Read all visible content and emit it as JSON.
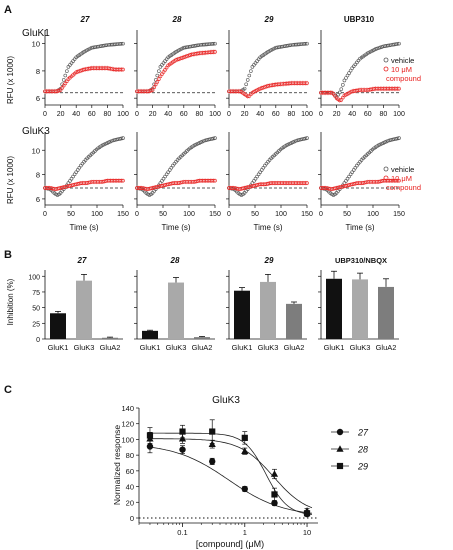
{
  "panels": {
    "a": "A",
    "b": "B",
    "c": "C"
  },
  "colors": {
    "vehicle": "#555555",
    "compound": "#e8201f",
    "baseline": "#222222",
    "bar_dark": "#111111",
    "bar_mid": "#a9a9a9",
    "bar_grey": "#7d7d7d"
  },
  "panel_a": {
    "compounds": [
      "27",
      "28",
      "29",
      "UBP310"
    ],
    "rows": [
      "GluK1",
      "GluK3"
    ],
    "ylabel": "RFU (x 1000)",
    "xlabel": "Time (s)",
    "legend": {
      "vehicle": "vehicle",
      "compound_line1": "10 μM",
      "compound_line2": "compound"
    },
    "row1_yticks": [
      "6",
      "8",
      "10"
    ],
    "row1_xticks": [
      "0",
      "20",
      "40",
      "60",
      "80",
      "100"
    ],
    "row2_yticks": [
      "6",
      "8",
      "10"
    ],
    "row2_xticks": [
      "0",
      "50",
      "100",
      "150"
    ]
  },
  "panel_b": {
    "titles": [
      "27",
      "28",
      "29",
      "UBP310/NBQX"
    ],
    "ylabel": "Inhibition (%)",
    "yticks": [
      "0",
      "25",
      "50",
      "75",
      "100"
    ],
    "categories": [
      "GluK1",
      "GluK3",
      "GluA2"
    ]
  },
  "panel_c": {
    "title": "GluK3",
    "ylabel": "Normalized response",
    "xlabel": "[compound] (μM)",
    "yticks": [
      "0",
      "20",
      "40",
      "60",
      "80",
      "100",
      "120",
      "140"
    ],
    "xticks": [
      "0.1",
      "1",
      "10"
    ],
    "legend": [
      "27",
      "28",
      "29"
    ]
  },
  "chart_data": [
    {
      "type": "line",
      "title": "27",
      "ylabel": "RFU (x 1000)",
      "xlim": [
        0,
        100
      ],
      "ylim": [
        5.5,
        11
      ],
      "series": [
        {
          "name": "vehicle",
          "x": [
            0,
            15,
            20,
            30,
            40,
            50,
            60,
            70,
            80,
            90,
            100
          ],
          "values": [
            6.5,
            6.5,
            6.7,
            8.3,
            9.0,
            9.4,
            9.7,
            9.8,
            9.9,
            9.95,
            10.0
          ]
        },
        {
          "name": "10 μM compound",
          "x": [
            0,
            15,
            20,
            30,
            40,
            50,
            60,
            70,
            80,
            90,
            100
          ],
          "values": [
            6.5,
            6.5,
            6.6,
            7.4,
            7.9,
            8.1,
            8.2,
            8.2,
            8.2,
            8.1,
            8.1
          ]
        }
      ]
    },
    {
      "type": "line",
      "title": "28",
      "ylabel": "RFU (x 1000)",
      "xlim": [
        0,
        100
      ],
      "ylim": [
        5.5,
        11
      ],
      "series": [
        {
          "name": "vehicle",
          "x": [
            0,
            15,
            20,
            30,
            40,
            50,
            60,
            70,
            80,
            90,
            100
          ],
          "values": [
            6.5,
            6.5,
            6.7,
            8.3,
            9.0,
            9.4,
            9.7,
            9.8,
            9.9,
            9.95,
            10.0
          ]
        },
        {
          "name": "10 μM compound",
          "x": [
            0,
            15,
            20,
            30,
            40,
            50,
            60,
            70,
            80,
            90,
            100
          ],
          "values": [
            6.5,
            6.5,
            6.6,
            7.6,
            8.4,
            8.8,
            9.0,
            9.2,
            9.3,
            9.35,
            9.4
          ]
        }
      ]
    },
    {
      "type": "line",
      "title": "29",
      "ylabel": "RFU (x 1000)",
      "xlim": [
        0,
        100
      ],
      "ylim": [
        5.5,
        11
      ],
      "series": [
        {
          "name": "vehicle",
          "x": [
            0,
            15,
            20,
            30,
            40,
            50,
            60,
            70,
            80,
            90,
            100
          ],
          "values": [
            6.5,
            6.5,
            6.7,
            8.3,
            9.0,
            9.4,
            9.7,
            9.8,
            9.9,
            9.95,
            10.0
          ]
        },
        {
          "name": "10 μM compound",
          "x": [
            0,
            15,
            20,
            25,
            30,
            40,
            50,
            60,
            70,
            80,
            90,
            100
          ],
          "values": [
            6.5,
            6.5,
            6.3,
            6.1,
            6.4,
            6.7,
            6.9,
            7.0,
            7.05,
            7.1,
            7.1,
            7.1
          ]
        }
      ]
    },
    {
      "type": "line",
      "title": "UBP310",
      "ylabel": "RFU (x 1000)",
      "xlim": [
        0,
        100
      ],
      "ylim": [
        5.5,
        11
      ],
      "series": [
        {
          "name": "vehicle",
          "x": [
            0,
            15,
            20,
            25,
            30,
            40,
            50,
            60,
            70,
            80,
            90,
            100
          ],
          "values": [
            6.4,
            6.4,
            6.1,
            6.5,
            7.3,
            8.2,
            8.9,
            9.3,
            9.6,
            9.8,
            9.9,
            10.0
          ]
        },
        {
          "name": "10 μM compound",
          "x": [
            0,
            15,
            20,
            25,
            30,
            40,
            50,
            60,
            70,
            80,
            90,
            100
          ],
          "values": [
            6.4,
            6.4,
            6.0,
            5.8,
            6.2,
            6.5,
            6.6,
            6.6,
            6.7,
            6.7,
            6.7,
            6.7
          ]
        }
      ]
    },
    {
      "type": "line",
      "title": "27",
      "ylabel": "RFU (x 1000)",
      "xlabel": "Time (s)",
      "xlim": [
        0,
        150
      ],
      "ylim": [
        5.5,
        11.5
      ],
      "series": [
        {
          "name": "vehicle",
          "x": [
            0,
            10,
            20,
            25,
            30,
            40,
            50,
            60,
            70,
            80,
            90,
            100,
            110,
            120,
            130,
            140,
            150
          ],
          "values": [
            6.9,
            6.8,
            6.4,
            6.3,
            6.5,
            7.0,
            7.6,
            8.2,
            8.8,
            9.3,
            9.7,
            10.1,
            10.4,
            10.6,
            10.8,
            10.9,
            11.0
          ]
        },
        {
          "name": "10 μM compound",
          "x": [
            0,
            10,
            20,
            30,
            40,
            50,
            60,
            70,
            80,
            90,
            100,
            110,
            120,
            130,
            140,
            150
          ],
          "values": [
            6.9,
            6.9,
            6.8,
            6.9,
            7.0,
            7.1,
            7.2,
            7.3,
            7.3,
            7.4,
            7.4,
            7.4,
            7.5,
            7.5,
            7.5,
            7.5
          ]
        }
      ]
    },
    {
      "type": "line",
      "title": "28",
      "ylabel": "RFU (x 1000)",
      "xlabel": "Time (s)",
      "xlim": [
        0,
        150
      ],
      "ylim": [
        5.5,
        11.5
      ],
      "series": [
        {
          "name": "vehicle",
          "x": [
            0,
            10,
            20,
            25,
            30,
            40,
            50,
            60,
            70,
            80,
            90,
            100,
            110,
            120,
            130,
            140,
            150
          ],
          "values": [
            6.9,
            6.8,
            6.4,
            6.3,
            6.5,
            7.0,
            7.6,
            8.2,
            8.8,
            9.3,
            9.7,
            10.1,
            10.4,
            10.6,
            10.8,
            10.9,
            11.0
          ]
        },
        {
          "name": "10 μM compound",
          "x": [
            0,
            10,
            20,
            30,
            40,
            50,
            60,
            70,
            80,
            90,
            100,
            110,
            120,
            130,
            140,
            150
          ],
          "values": [
            6.9,
            6.9,
            6.8,
            6.9,
            7.0,
            7.1,
            7.2,
            7.3,
            7.3,
            7.4,
            7.4,
            7.4,
            7.5,
            7.5,
            7.5,
            7.5
          ]
        }
      ]
    },
    {
      "type": "line",
      "title": "29",
      "ylabel": "RFU (x 1000)",
      "xlabel": "Time (s)",
      "xlim": [
        0,
        150
      ],
      "ylim": [
        5.5,
        11.5
      ],
      "series": [
        {
          "name": "vehicle",
          "x": [
            0,
            10,
            20,
            25,
            30,
            40,
            50,
            60,
            70,
            80,
            90,
            100,
            110,
            120,
            130,
            140,
            150
          ],
          "values": [
            6.9,
            6.8,
            6.4,
            6.3,
            6.5,
            7.0,
            7.6,
            8.2,
            8.8,
            9.3,
            9.7,
            10.1,
            10.4,
            10.6,
            10.8,
            10.9,
            11.0
          ]
        },
        {
          "name": "10 μM compound",
          "x": [
            0,
            10,
            20,
            30,
            40,
            50,
            60,
            70,
            80,
            90,
            100,
            110,
            120,
            130,
            140,
            150
          ],
          "values": [
            6.9,
            6.9,
            6.8,
            6.9,
            7.0,
            7.1,
            7.2,
            7.2,
            7.3,
            7.3,
            7.3,
            7.3,
            7.3,
            7.3,
            7.3,
            7.3
          ]
        }
      ]
    },
    {
      "type": "line",
      "title": "UBP310",
      "ylabel": "RFU (x 1000)",
      "xlabel": "Time (s)",
      "xlim": [
        0,
        150
      ],
      "ylim": [
        5.5,
        11.5
      ],
      "series": [
        {
          "name": "vehicle",
          "x": [
            0,
            10,
            20,
            25,
            30,
            40,
            50,
            60,
            70,
            80,
            90,
            100,
            110,
            120,
            130,
            140,
            150
          ],
          "values": [
            6.9,
            6.8,
            6.4,
            6.3,
            6.5,
            7.0,
            7.6,
            8.2,
            8.8,
            9.3,
            9.7,
            10.1,
            10.4,
            10.6,
            10.8,
            10.9,
            11.0
          ]
        },
        {
          "name": "10 μM compound",
          "x": [
            0,
            10,
            20,
            30,
            40,
            50,
            60,
            70,
            80,
            90,
            100,
            110,
            120,
            130,
            140,
            150
          ],
          "values": [
            6.9,
            6.9,
            6.8,
            6.9,
            7.0,
            7.1,
            7.2,
            7.3,
            7.3,
            7.4,
            7.4,
            7.4,
            7.5,
            7.5,
            7.5,
            7.5
          ]
        }
      ]
    },
    {
      "type": "bar",
      "title": "27",
      "ylabel": "Inhibition (%)",
      "categories": [
        "GluK1",
        "GluK3",
        "GluA2"
      ],
      "values": [
        41,
        93,
        2
      ],
      "errors": [
        3,
        10,
        1
      ],
      "ylim": [
        0,
        110
      ]
    },
    {
      "type": "bar",
      "title": "28",
      "ylabel": "Inhibition (%)",
      "categories": [
        "GluK1",
        "GluK3",
        "GluA2"
      ],
      "values": [
        13,
        90,
        3
      ],
      "errors": [
        1,
        8,
        1
      ],
      "ylim": [
        0,
        110
      ]
    },
    {
      "type": "bar",
      "title": "29",
      "ylabel": "Inhibition (%)",
      "categories": [
        "GluK1",
        "GluK3",
        "GluA2"
      ],
      "values": [
        77,
        91,
        56
      ],
      "errors": [
        5,
        12,
        3
      ],
      "ylim": [
        0,
        110
      ]
    },
    {
      "type": "bar",
      "title": "UBP310/NBQX",
      "ylabel": "Inhibition (%)",
      "categories": [
        "GluK1",
        "GluK3",
        "GluA2"
      ],
      "values": [
        96,
        95,
        83
      ],
      "errors": [
        12,
        10,
        13
      ],
      "ylim": [
        0,
        110
      ]
    },
    {
      "type": "scatter",
      "title": "GluK3",
      "ylabel": "Normalized response",
      "xlabel": "[compound] (μM)",
      "xscale": "log",
      "xlim": [
        0.02,
        15
      ],
      "ylim": [
        0,
        140
      ],
      "series": [
        {
          "name": "27",
          "marker": "circle",
          "x": [
            0.03,
            0.1,
            0.3,
            1,
            3,
            10
          ],
          "values": [
            91,
            87,
            72,
            37,
            19,
            5
          ],
          "errors": [
            8,
            5,
            4,
            3,
            3,
            2
          ]
        },
        {
          "name": "28",
          "marker": "triangle",
          "x": [
            0.03,
            0.1,
            0.3,
            1,
            3,
            10
          ],
          "values": [
            101,
            101,
            94,
            85,
            56,
            9
          ],
          "errors": [
            8,
            6,
            5,
            4,
            6,
            3
          ]
        },
        {
          "name": "29",
          "marker": "square",
          "x": [
            0.03,
            0.1,
            0.3,
            1,
            3,
            10
          ],
          "values": [
            105,
            110,
            110,
            102,
            30,
            6
          ],
          "errors": [
            10,
            8,
            15,
            8,
            8,
            3
          ]
        }
      ]
    }
  ]
}
